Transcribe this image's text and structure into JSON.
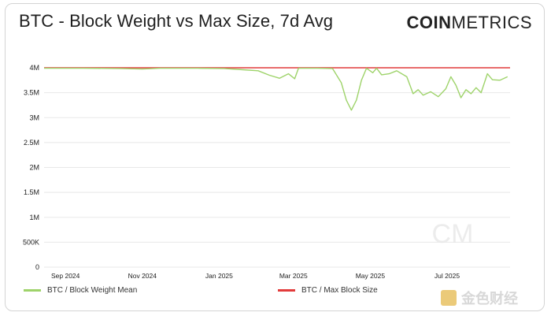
{
  "title": "BTC - Block Weight vs Max Size, 7d Avg",
  "logo": {
    "bold": "COIN",
    "light": "METRICS"
  },
  "watermark": {
    "text": "金色财经",
    "mark": "CM"
  },
  "colors": {
    "series_weight": "#9ed36a",
    "series_max": "#e23b3b",
    "grid": "#e8e8e8",
    "axis_text": "#222222"
  },
  "legend": {
    "weight": "BTC / Block Weight Mean",
    "max": "BTC / Max Block Size"
  },
  "chart_data": {
    "type": "line",
    "title": "BTC - Block Weight vs Max Size, 7d Avg",
    "xlabel": "",
    "ylabel": "",
    "x_range": [
      "2024-08-15",
      "2025-08-20"
    ],
    "ylim": [
      0,
      4000000
    ],
    "y_ticks": [
      0,
      500000,
      1000000,
      1500000,
      2000000,
      2500000,
      3000000,
      3500000,
      4000000
    ],
    "y_tick_labels": [
      "0",
      "500K",
      "1M",
      "1.5M",
      "2M",
      "2.5M",
      "3M",
      "3.5M",
      "4M"
    ],
    "x_ticks": [
      {
        "date": "2024-09-01",
        "label": "Sep 2024"
      },
      {
        "date": "2024-11-01",
        "label": "Nov 2024"
      },
      {
        "date": "2025-01-01",
        "label": "Jan 2025"
      },
      {
        "date": "2025-03-01",
        "label": "Mar 2025"
      },
      {
        "date": "2025-05-01",
        "label": "May 2025"
      },
      {
        "date": "2025-07-01",
        "label": "Jul 2025"
      }
    ],
    "grid": "horizontal",
    "legend_position": "bottom",
    "series": [
      {
        "name": "BTC / Max Block Size",
        "color": "#e23b3b",
        "points": [
          [
            "2024-08-15",
            4000000
          ],
          [
            "2025-08-20",
            4000000
          ]
        ]
      },
      {
        "name": "BTC / Block Weight Mean",
        "color": "#9ed36a",
        "points": [
          [
            "2024-08-15",
            3990000
          ],
          [
            "2024-09-15",
            3990000
          ],
          [
            "2024-10-15",
            3985000
          ],
          [
            "2024-11-01",
            3975000
          ],
          [
            "2024-11-15",
            3990000
          ],
          [
            "2024-12-15",
            3990000
          ],
          [
            "2025-01-05",
            3985000
          ],
          [
            "2025-01-20",
            3960000
          ],
          [
            "2025-02-01",
            3940000
          ],
          [
            "2025-02-10",
            3850000
          ],
          [
            "2025-02-18",
            3790000
          ],
          [
            "2025-02-25",
            3880000
          ],
          [
            "2025-03-02",
            3780000
          ],
          [
            "2025-03-05",
            3990000
          ],
          [
            "2025-03-20",
            3990000
          ],
          [
            "2025-04-01",
            3985000
          ],
          [
            "2025-04-08",
            3700000
          ],
          [
            "2025-04-12",
            3350000
          ],
          [
            "2025-04-16",
            3150000
          ],
          [
            "2025-04-20",
            3350000
          ],
          [
            "2025-04-24",
            3750000
          ],
          [
            "2025-04-28",
            3990000
          ],
          [
            "2025-05-03",
            3900000
          ],
          [
            "2025-05-06",
            3990000
          ],
          [
            "2025-05-10",
            3860000
          ],
          [
            "2025-05-16",
            3880000
          ],
          [
            "2025-05-22",
            3940000
          ],
          [
            "2025-05-30",
            3820000
          ],
          [
            "2025-06-04",
            3480000
          ],
          [
            "2025-06-08",
            3560000
          ],
          [
            "2025-06-12",
            3450000
          ],
          [
            "2025-06-18",
            3520000
          ],
          [
            "2025-06-24",
            3420000
          ],
          [
            "2025-06-30",
            3580000
          ],
          [
            "2025-07-04",
            3820000
          ],
          [
            "2025-07-08",
            3650000
          ],
          [
            "2025-07-12",
            3400000
          ],
          [
            "2025-07-16",
            3560000
          ],
          [
            "2025-07-20",
            3480000
          ],
          [
            "2025-07-24",
            3600000
          ],
          [
            "2025-07-28",
            3500000
          ],
          [
            "2025-08-02",
            3880000
          ],
          [
            "2025-08-06",
            3760000
          ],
          [
            "2025-08-12",
            3750000
          ],
          [
            "2025-08-18",
            3820000
          ]
        ]
      }
    ]
  }
}
